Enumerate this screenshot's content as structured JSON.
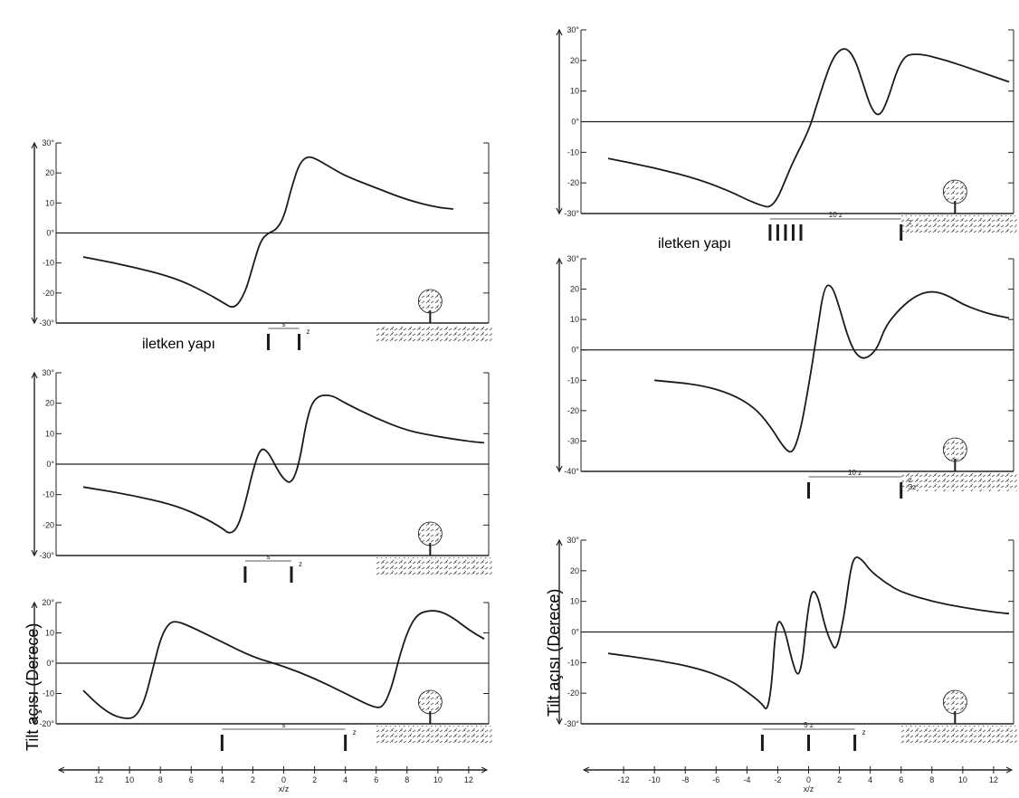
{
  "y_axis_label": "Tilt açısı (Derece)",
  "conductor_label": "iletken yapı",
  "colors": {
    "curve": "#1a1a1a",
    "axis": "#222222",
    "ground": "#555555"
  },
  "chart_data": [
    {
      "type": "line",
      "column": "left",
      "row": 1,
      "ylim": [
        -30,
        30
      ],
      "yticks": [
        "30°",
        "20",
        "10",
        "0°",
        "-10",
        "-20",
        "-30°"
      ],
      "x": [
        -13,
        -10,
        -7,
        -5,
        -4,
        -3.2,
        -2.5,
        -2,
        -1.5,
        -1,
        -0.5,
        0,
        0.5,
        1,
        1.5,
        2,
        3,
        4,
        6,
        8,
        10,
        11
      ],
      "y": [
        -8,
        -11,
        -15,
        -20,
        -23,
        -25.5,
        -20,
        -11,
        -2.5,
        0,
        1,
        5,
        15,
        23,
        25.5,
        25,
        22,
        19,
        15,
        11,
        8.5,
        8
      ],
      "spacing_label": "s",
      "depth_label": "z",
      "conductors_x": [
        -1,
        1
      ]
    },
    {
      "type": "line",
      "column": "left",
      "row": 2,
      "ylim": [
        -30,
        30
      ],
      "yticks": [
        "30°",
        "20",
        "10",
        "0°",
        "-10",
        "-20",
        "-30°"
      ],
      "x": [
        -13,
        -10,
        -7,
        -5,
        -4,
        -3.5,
        -3,
        -2.5,
        -2,
        -1.5,
        -1,
        -0.5,
        0,
        0.5,
        1,
        1.5,
        2,
        3,
        4,
        6,
        8,
        10,
        12,
        13
      ],
      "y": [
        -7.5,
        -10,
        -13.5,
        -18,
        -21,
        -23,
        -21,
        -13,
        -2,
        5.5,
        4,
        -1,
        -5,
        -6.5,
        0,
        15,
        22,
        23,
        20,
        15,
        11,
        9,
        7.5,
        7
      ],
      "spacing_label": "s",
      "depth_label": "z",
      "conductors_x": [
        -2.5,
        0.5
      ]
    },
    {
      "type": "line",
      "column": "left",
      "row": 3,
      "ylim": [
        -20,
        20
      ],
      "yticks": [
        "20°",
        "10",
        "0°",
        "-10",
        "-20°"
      ],
      "x": [
        -13,
        -12,
        -11,
        -10,
        -9.5,
        -9,
        -8.5,
        -8,
        -7.5,
        -7,
        -6,
        -4,
        -2,
        0,
        2,
        4,
        6,
        6.5,
        7,
        7.5,
        8,
        8.5,
        9,
        10,
        11,
        12,
        13
      ],
      "y": [
        -9,
        -14,
        -17.5,
        -18.5,
        -17,
        -12,
        -2,
        8,
        13,
        14,
        12,
        7,
        2,
        -1,
        -5,
        -10,
        -15,
        -14,
        -8,
        2,
        10,
        15,
        17,
        17.5,
        15,
        11,
        8
      ],
      "spacing_label": "s",
      "depth_label": "z",
      "conductors_x": [
        -4,
        4
      ]
    },
    {
      "type": "line",
      "column": "right",
      "row": 1,
      "ylim": [
        -30,
        30
      ],
      "yticks": [
        "30°",
        "20",
        "10",
        "0°",
        "-10",
        "-20",
        "-30°"
      ],
      "x": [
        -13,
        -10,
        -7,
        -5,
        -4,
        -3,
        -2.5,
        -2,
        -1.5,
        -1,
        0,
        0.5,
        1,
        1.5,
        2,
        2.5,
        3,
        3.5,
        4,
        4.5,
        5,
        6,
        7,
        9,
        11,
        13
      ],
      "y": [
        -12,
        -15,
        -19,
        -23,
        -25.5,
        -27.5,
        -28,
        -25,
        -19,
        -13,
        -3,
        5,
        13,
        20,
        23.5,
        24,
        20.5,
        13,
        5,
        1.5,
        5,
        21,
        22.5,
        20,
        16.5,
        13
      ],
      "spacing_label": "10 z",
      "depth_label": "z",
      "conductors_x": [
        -2.5,
        -2,
        -1.5,
        -1,
        -0.5,
        6
      ]
    },
    {
      "type": "line",
      "column": "right",
      "row": 2,
      "ylim": [
        -40,
        30
      ],
      "yticks": [
        "30°",
        "20",
        "10",
        "0°",
        "-10",
        "-20",
        "-30",
        "-40°"
      ],
      "x": [
        -10,
        -7,
        -5,
        -3.5,
        -2.5,
        -1.5,
        -1,
        -0.5,
        0,
        0.5,
        1,
        1.5,
        2,
        2.5,
        3,
        3.5,
        4,
        4.5,
        5,
        6,
        7,
        8,
        9,
        10,
        11,
        12,
        13
      ],
      "y": [
        -10,
        -11.5,
        -14.5,
        -19,
        -25,
        -33,
        -34,
        -26,
        -12,
        4,
        21,
        21.5,
        14,
        5,
        -1,
        -3,
        -2,
        1,
        8,
        14,
        18,
        19.5,
        18,
        15,
        13,
        11.5,
        10.5
      ],
      "spacing_label": "10 z",
      "depth_label": "z",
      "depth_label_2": "3z",
      "conductors_x": [
        0,
        6
      ]
    },
    {
      "type": "line",
      "column": "right",
      "row": 3,
      "ylim": [
        -30,
        30
      ],
      "yticks": [
        "30°",
        "20",
        "10",
        "0°",
        "-10",
        "-20",
        "-30°"
      ],
      "x": [
        -13,
        -10,
        -7,
        -5,
        -4,
        -3,
        -2.7,
        -2.4,
        -2.1,
        -1.6,
        -1.1,
        -0.7,
        -0.4,
        -0.1,
        0.2,
        0.6,
        1,
        1.4,
        1.8,
        2.3,
        2.7,
        3,
        3.5,
        4,
        5,
        6,
        8,
        10,
        12,
        13
      ],
      "y": [
        -7,
        -9,
        -12,
        -16,
        -19.5,
        -23.5,
        -26,
        -18,
        4.5,
        2,
        -9,
        -15,
        -10,
        5,
        14,
        12,
        3,
        -3,
        -6.5,
        5,
        20,
        25,
        23.5,
        20,
        16,
        13,
        10,
        8,
        6.5,
        6
      ],
      "spacing_label": "5 z",
      "depth_label": "z",
      "conductors_x": [
        -3,
        0,
        3
      ]
    }
  ],
  "x_axes": [
    {
      "column": "left",
      "label": "x/z",
      "ticks": [
        "12",
        "10",
        "8",
        "6",
        "4",
        "2",
        "0",
        "2",
        "4",
        "6",
        "8",
        "10",
        "12"
      ]
    },
    {
      "column": "right",
      "label": "x/z",
      "ticks": [
        "-12",
        "-10",
        "-8",
        "-6",
        "-4",
        "-2",
        "0",
        "2",
        "4",
        "6",
        "8",
        "10",
        "12"
      ]
    }
  ]
}
